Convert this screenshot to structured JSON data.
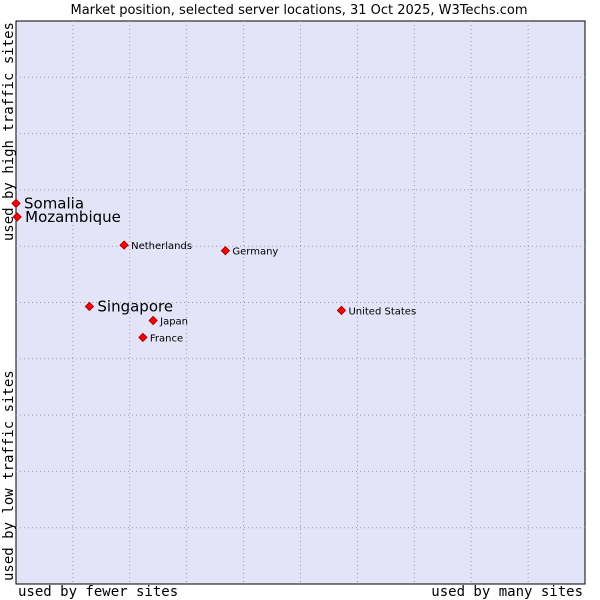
{
  "chart_data": {
    "type": "scatter",
    "title": "Market position, selected server locations, 31 Oct 2025, W3Techs.com",
    "xlabel_left": "used by fewer sites",
    "xlabel_right": "used by many sites",
    "ylabel_bottom": "used by low traffic sites",
    "ylabel_top": "used by high traffic sites",
    "xlim": [
      0,
      100
    ],
    "ylim": [
      0,
      100
    ],
    "grid": true,
    "colors": {
      "plot_bg": "#e4e4f8",
      "point": "#ff0000"
    },
    "points": [
      {
        "name": "Somalia",
        "x": 0.0,
        "y": 67.6,
        "emphasis": true
      },
      {
        "name": "Mozambique",
        "x": 0.2,
        "y": 65.2,
        "emphasis": true
      },
      {
        "name": "Netherlands",
        "x": 19.0,
        "y": 60.2,
        "emphasis": false
      },
      {
        "name": "Germany",
        "x": 36.8,
        "y": 59.2,
        "emphasis": false
      },
      {
        "name": "Singapore",
        "x": 12.9,
        "y": 49.3,
        "emphasis": true
      },
      {
        "name": "United States",
        "x": 57.2,
        "y": 48.6,
        "emphasis": false
      },
      {
        "name": "Japan",
        "x": 24.1,
        "y": 46.8,
        "emphasis": false
      },
      {
        "name": "France",
        "x": 22.3,
        "y": 43.8,
        "emphasis": false
      }
    ]
  }
}
